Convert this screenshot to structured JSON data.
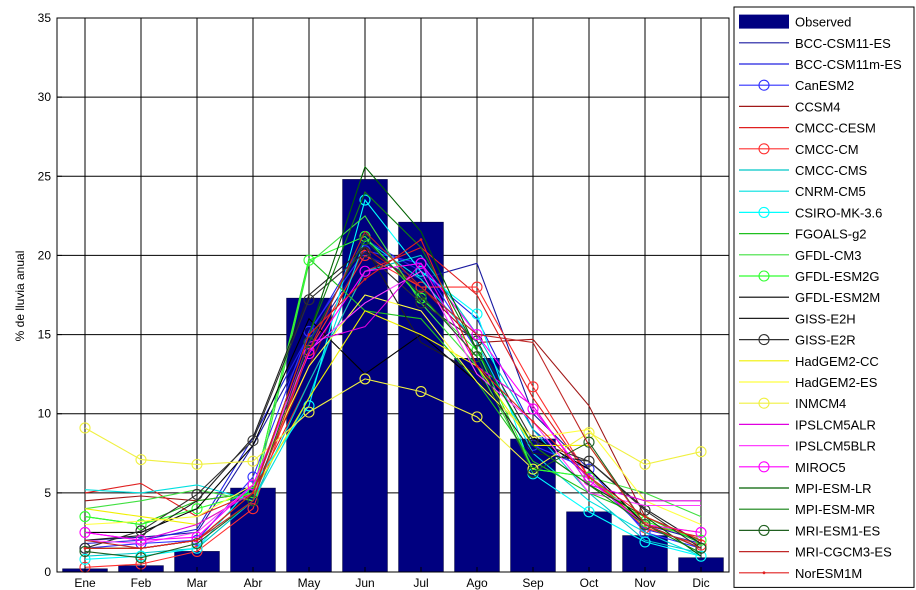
{
  "chart_data": {
    "type": "bar",
    "title": "",
    "xlabel": "",
    "ylabel": "% de lluvia anual",
    "ylim": [
      0,
      35
    ],
    "yticks": [
      0,
      5,
      10,
      15,
      20,
      25,
      30,
      35
    ],
    "grid": true,
    "legend_position": "right",
    "categories": [
      "Ene",
      "Feb",
      "Mar",
      "Abr",
      "May",
      "Jun",
      "Jul",
      "Ago",
      "Sep",
      "Oct",
      "Nov",
      "Dic"
    ],
    "observed": {
      "name": "Observed",
      "color": "#000080",
      "values": [
        0.2,
        0.4,
        1.3,
        5.3,
        17.3,
        24.8,
        22.1,
        13.5,
        8.4,
        3.8,
        2.3,
        0.9
      ]
    },
    "series": [
      {
        "name": "BCC-CSM11-ES",
        "color": "#1a1aa0",
        "marker": "none",
        "values": [
          2.0,
          2.2,
          2.5,
          8.0,
          14.5,
          20.0,
          18.5,
          19.5,
          10.0,
          6.5,
          3.0,
          2.0
        ]
      },
      {
        "name": "BCC-CSM11m-ES",
        "color": "#2020e0",
        "marker": "none",
        "values": [
          1.8,
          2.0,
          2.7,
          8.5,
          15.0,
          21.0,
          19.0,
          16.0,
          9.0,
          6.0,
          2.7,
          1.8
        ]
      },
      {
        "name": "CanESM2",
        "color": "#3030ff",
        "marker": "circle",
        "values": [
          1.5,
          1.8,
          2.0,
          6.0,
          15.2,
          20.3,
          19.5,
          14.0,
          8.0,
          6.5,
          2.5,
          1.5
        ]
      },
      {
        "name": "CCSM4",
        "color": "#a01818",
        "marker": "none",
        "values": [
          4.5,
          4.8,
          4.5,
          5.0,
          13.0,
          20.5,
          18.0,
          14.5,
          14.7,
          10.5,
          3.5,
          2.0
        ]
      },
      {
        "name": "CMCC-CESM",
        "color": "#e02020",
        "marker": "none",
        "values": [
          5.0,
          5.6,
          3.5,
          5.0,
          12.0,
          19.0,
          20.5,
          17.5,
          11.0,
          6.0,
          3.0,
          2.2
        ]
      },
      {
        "name": "CMCC-CM",
        "color": "#ff3030",
        "marker": "circle",
        "values": [
          0.3,
          0.5,
          1.3,
          4.0,
          14.0,
          20.0,
          18.0,
          18.0,
          11.7,
          6.0,
          2.8,
          1.7
        ]
      },
      {
        "name": "CMCC-CMS",
        "color": "#00c8c8",
        "marker": "none",
        "values": [
          1.0,
          1.2,
          1.5,
          4.5,
          12.0,
          19.0,
          20.0,
          15.0,
          9.0,
          5.0,
          2.0,
          1.2
        ]
      },
      {
        "name": "CNRM-CM5",
        "color": "#00e0e0",
        "marker": "none",
        "values": [
          5.2,
          5.0,
          5.5,
          4.5,
          11.0,
          21.0,
          18.5,
          14.5,
          7.5,
          4.5,
          2.5,
          1.0
        ]
      },
      {
        "name": "CSIRO-MK-3.6",
        "color": "#00ffff",
        "marker": "circle",
        "values": [
          0.8,
          1.0,
          1.5,
          5.5,
          10.5,
          23.5,
          19.0,
          16.3,
          6.2,
          3.8,
          1.9,
          1.0
        ]
      },
      {
        "name": "FGOALS-g2",
        "color": "#20c020",
        "marker": "none",
        "values": [
          3.5,
          3.0,
          4.5,
          5.0,
          19.8,
          16.5,
          16.0,
          12.0,
          7.0,
          5.0,
          3.5,
          1.8
        ]
      },
      {
        "name": "GFDL-CM3",
        "color": "#40e040",
        "marker": "none",
        "values": [
          4.0,
          4.5,
          5.2,
          4.5,
          19.5,
          22.5,
          17.0,
          13.0,
          6.5,
          6.0,
          5.0,
          3.5
        ]
      },
      {
        "name": "GFDL-ESM2G",
        "color": "#30ff30",
        "marker": "circle",
        "values": [
          3.5,
          3.0,
          4.0,
          5.0,
          19.7,
          21.2,
          17.3,
          14.0,
          6.5,
          6.0,
          3.2,
          2.0
        ]
      },
      {
        "name": "GFDL-ESM2M",
        "color": "#000000",
        "marker": "none",
        "values": [
          2.5,
          2.5,
          4.0,
          8.0,
          16.0,
          12.5,
          15.0,
          12.0,
          8.5,
          6.5,
          3.0,
          1.5
        ]
      },
      {
        "name": "GISS-E2H",
        "color": "#202020",
        "marker": "none",
        "values": [
          2.0,
          2.3,
          4.5,
          8.5,
          17.5,
          20.5,
          14.5,
          12.5,
          7.5,
          7.0,
          4.0,
          1.8
        ]
      },
      {
        "name": "GISS-E2R",
        "color": "#303030",
        "marker": "circle",
        "values": [
          1.5,
          2.6,
          4.9,
          8.3,
          17.2,
          20.2,
          17.0,
          14.6,
          8.3,
          7.0,
          3.9,
          1.5
        ]
      },
      {
        "name": "HadGEM2-CC",
        "color": "#f0f000",
        "marker": "none",
        "values": [
          4.0,
          3.5,
          3.0,
          5.0,
          11.0,
          16.5,
          15.0,
          13.0,
          8.0,
          8.0,
          3.0,
          2.5
        ]
      },
      {
        "name": "HadGEM2-ES",
        "color": "#ffff40",
        "marker": "none",
        "values": [
          3.0,
          3.2,
          3.5,
          5.5,
          13.0,
          17.5,
          16.5,
          12.0,
          8.5,
          9.0,
          4.5,
          3.0
        ]
      },
      {
        "name": "INMCM4",
        "color": "#f0f040",
        "marker": "circle",
        "values": [
          9.1,
          7.1,
          6.8,
          7.0,
          10.1,
          12.2,
          11.4,
          9.8,
          6.5,
          8.8,
          6.8,
          7.6
        ]
      },
      {
        "name": "IPSLCM5ALR",
        "color": "#e000e0",
        "marker": "none",
        "values": [
          2.5,
          2.0,
          3.0,
          5.0,
          14.5,
          15.5,
          19.5,
          13.0,
          10.5,
          5.5,
          4.5,
          4.5
        ]
      },
      {
        "name": "IPSLCM5BLR",
        "color": "#ff40ff",
        "marker": "none",
        "values": [
          2.0,
          1.8,
          2.5,
          5.5,
          14.0,
          17.0,
          19.0,
          12.5,
          9.5,
          5.0,
          4.2,
          4.2
        ]
      },
      {
        "name": "MIROC5",
        "color": "#ff00ff",
        "marker": "circle",
        "values": [
          2.5,
          2.0,
          2.2,
          5.5,
          13.8,
          19.0,
          19.5,
          15.0,
          10.3,
          5.8,
          3.0,
          2.5
        ]
      },
      {
        "name": "MPI-ESM-LR",
        "color": "#006000",
        "marker": "none",
        "values": [
          1.5,
          1.5,
          2.0,
          5.0,
          15.0,
          25.6,
          21.5,
          14.0,
          8.0,
          5.5,
          3.5,
          1.0
        ]
      },
      {
        "name": "MPI-ESM-MR",
        "color": "#108010",
        "marker": "none",
        "values": [
          1.5,
          1.5,
          2.0,
          5.0,
          15.0,
          24.0,
          20.5,
          14.0,
          8.0,
          5.5,
          3.0,
          1.2
        ]
      },
      {
        "name": "MRI-ESM1-ES",
        "color": "#206020",
        "marker": "circle",
        "values": [
          1.3,
          0.9,
          1.8,
          4.5,
          14.5,
          21.0,
          17.5,
          13.6,
          6.3,
          8.2,
          3.0,
          1.5
        ]
      },
      {
        "name": "MRI-CGCM3-ES",
        "color": "#c02828",
        "marker": "none",
        "values": [
          2.0,
          1.5,
          2.0,
          4.5,
          14.0,
          21.5,
          18.0,
          15.0,
          14.5,
          8.0,
          3.0,
          1.5
        ]
      },
      {
        "name": "NorESM1M",
        "color": "#e02020",
        "marker": "dot",
        "values": [
          1.5,
          1.5,
          2.0,
          5.0,
          15.0,
          18.5,
          21.0,
          13.0,
          9.5,
          6.0,
          3.5,
          2.0
        ]
      }
    ]
  }
}
